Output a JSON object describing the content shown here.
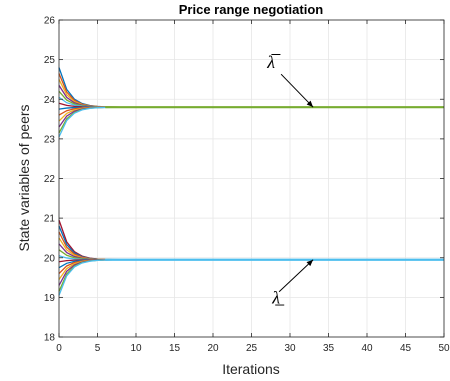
{
  "chart_data": {
    "type": "line",
    "title": "Price range negotiation",
    "xlabel": "Iterations",
    "ylabel": "State variables of peers",
    "xlim": [
      0,
      50
    ],
    "ylim": [
      18,
      26
    ],
    "xticks": [
      0,
      5,
      10,
      15,
      20,
      25,
      30,
      35,
      40,
      45,
      50
    ],
    "yticks": [
      18,
      19,
      20,
      21,
      22,
      23,
      24,
      25,
      26
    ],
    "grid": true,
    "legend": "none",
    "groups": [
      {
        "converged_value": 23.8,
        "initial_values": [
          24.8,
          24.65,
          24.5,
          24.35,
          24.2,
          24.05,
          23.9,
          23.75,
          23.6,
          23.45,
          23.3,
          23.15,
          23.05
        ],
        "annotation": "λ̅",
        "annotation_point": {
          "x": 33,
          "y": 23.8
        }
      },
      {
        "converged_value": 19.95,
        "initial_values": [
          20.95,
          20.8,
          20.65,
          20.5,
          20.35,
          20.2,
          20.05,
          19.9,
          19.75,
          19.6,
          19.45,
          19.3,
          19.15,
          19.05
        ],
        "annotation": "λ̲",
        "annotation_point": {
          "x": 33,
          "y": 19.95
        }
      }
    ],
    "series_colors": [
      "#0072bd",
      "#d95319",
      "#edb120",
      "#7e2f8e",
      "#77ac30",
      "#4dbeee",
      "#a2142f"
    ]
  }
}
